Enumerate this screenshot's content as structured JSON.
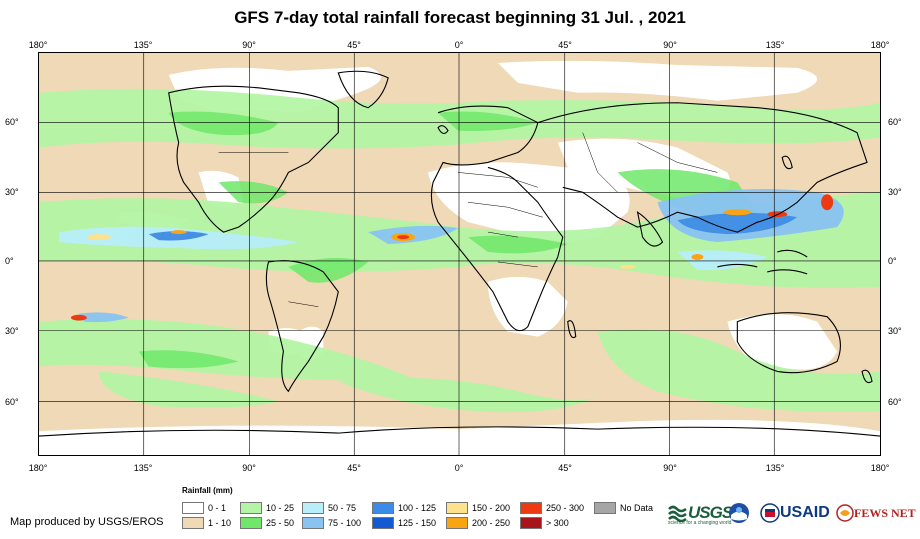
{
  "title": "GFS 7-day total rainfall forecast beginning 31 Jul. , 2021",
  "longitude_ticks": [
    "180°",
    "135°",
    "90°",
    "45°",
    "0°",
    "45°",
    "90°",
    "135°",
    "180°"
  ],
  "latitude_ticks": [
    "60°",
    "30°",
    "0°",
    "30°",
    "60°"
  ],
  "legend": {
    "title": "Rainfall (mm)",
    "items": [
      {
        "label": "0 - 1",
        "color": "#ffffff"
      },
      {
        "label": "1 - 10",
        "color": "#efd9b6"
      },
      {
        "label": "10 - 25",
        "color": "#b4f5a5"
      },
      {
        "label": "25 - 50",
        "color": "#6fe86a"
      },
      {
        "label": "50 - 75",
        "color": "#b8eefa"
      },
      {
        "label": "75 - 100",
        "color": "#89c3f2"
      },
      {
        "label": "100 - 125",
        "color": "#3d8be8"
      },
      {
        "label": "125 - 150",
        "color": "#1459d4"
      },
      {
        "label": "150 - 200",
        "color": "#fde18b"
      },
      {
        "label": "200 - 250",
        "color": "#f8a414"
      },
      {
        "label": "250 - 300",
        "color": "#ee3a12"
      },
      {
        "label": "> 300",
        "color": "#a8141a"
      },
      {
        "label": "No Data",
        "color": "#a6a6a6"
      }
    ]
  },
  "credit": "Map produced by USGS/EROS",
  "logos": {
    "usgs": "USGS",
    "usgs_tagline": "science for a changing world",
    "usaid": "USAID",
    "fews": "FEWS NET"
  }
}
